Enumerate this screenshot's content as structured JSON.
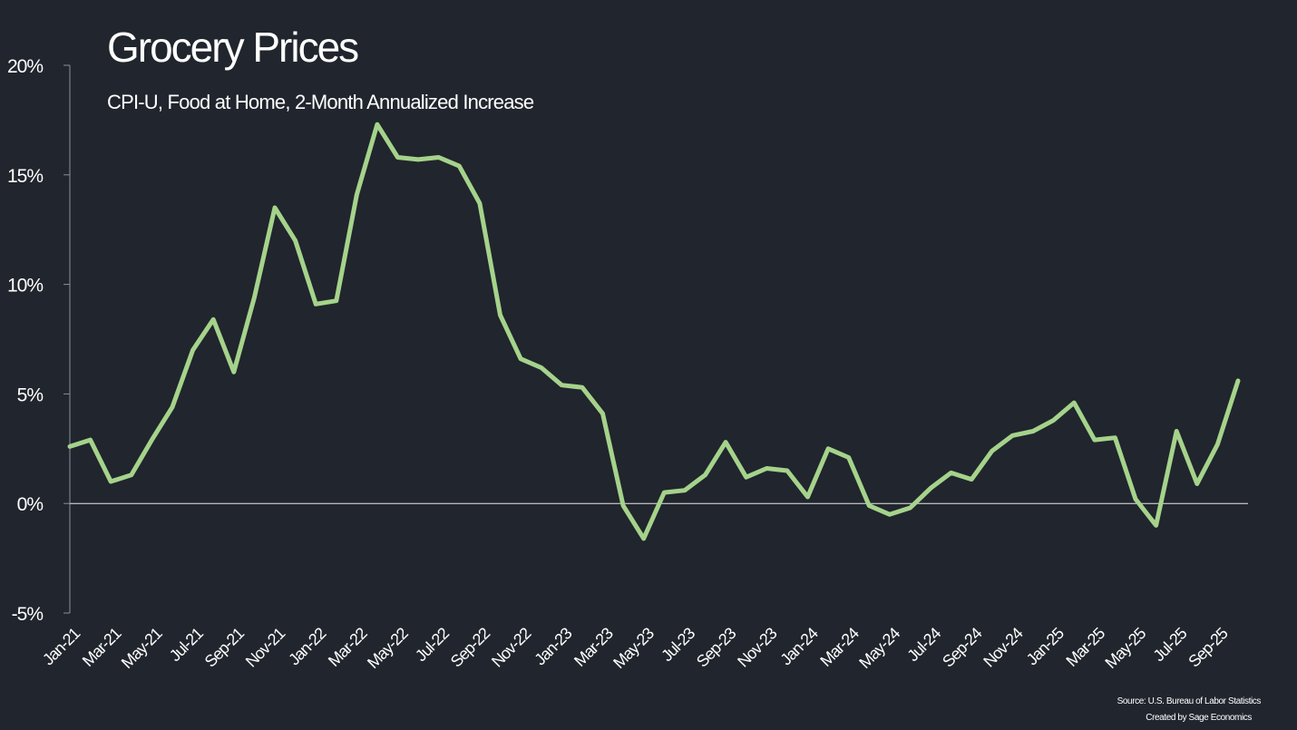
{
  "chart_data": {
    "type": "line",
    "title": "Grocery Prices",
    "subtitle": "CPI-U, Food at Home, 2-Month Annualized Increase",
    "source": [
      "Source: U.S. Bureau of Labor Statistics",
      "Created by Sage Economics"
    ],
    "categories": [
      "Jan-21",
      null,
      "Mar-21",
      null,
      "May-21",
      null,
      "Jul-21",
      null,
      "Sep-21",
      null,
      "Nov-21",
      null,
      "Jan-22",
      null,
      "Mar-22",
      null,
      "May-22",
      null,
      "Jul-22",
      null,
      "Sep-22",
      null,
      "Nov-22",
      null,
      "Jan-23",
      null,
      "Mar-23",
      null,
      "May-23",
      null,
      "Jul-23",
      null,
      "Sep-23",
      null,
      "Nov-23",
      null,
      "Jan-24",
      null,
      "Mar-24",
      null,
      "May-24",
      null,
      "Jul-24",
      null,
      "Sep-24",
      null,
      "Nov-24",
      null,
      "Jan-25",
      null,
      "Mar-25",
      null,
      "May-25",
      null,
      "Jul-25",
      null,
      "Sep-25",
      null
    ],
    "series": [
      {
        "name": "Food at Home",
        "color": "#a5d38b",
        "values": [
          2.6,
          2.9,
          1.0,
          1.3,
          2.9,
          4.4,
          7.0,
          8.4,
          6.0,
          9.4,
          13.5,
          12.0,
          9.1,
          9.25,
          14.1,
          17.3,
          15.8,
          15.7,
          15.8,
          15.4,
          13.7,
          8.6,
          6.6,
          6.2,
          5.4,
          5.3,
          4.1,
          -0.1,
          -1.6,
          0.5,
          0.6,
          1.3,
          2.8,
          1.2,
          1.6,
          1.5,
          0.3,
          2.5,
          2.1,
          -0.1,
          -0.5,
          -0.2,
          0.7,
          1.4,
          1.1,
          2.4,
          3.1,
          3.3,
          3.8,
          4.6,
          2.9,
          3.0,
          0.2,
          -1.0,
          3.3,
          0.9,
          2.7,
          5.6
        ]
      }
    ],
    "ylim": [
      -5,
      20
    ],
    "yticks": [
      {
        "value": -5,
        "label": "-5%"
      },
      {
        "value": 0,
        "label": "0%"
      },
      {
        "value": 5,
        "label": "5%"
      },
      {
        "value": 10,
        "label": "10%"
      },
      {
        "value": 15,
        "label": "15%"
      },
      {
        "value": 20,
        "label": "20%"
      }
    ],
    "grid": false
  }
}
